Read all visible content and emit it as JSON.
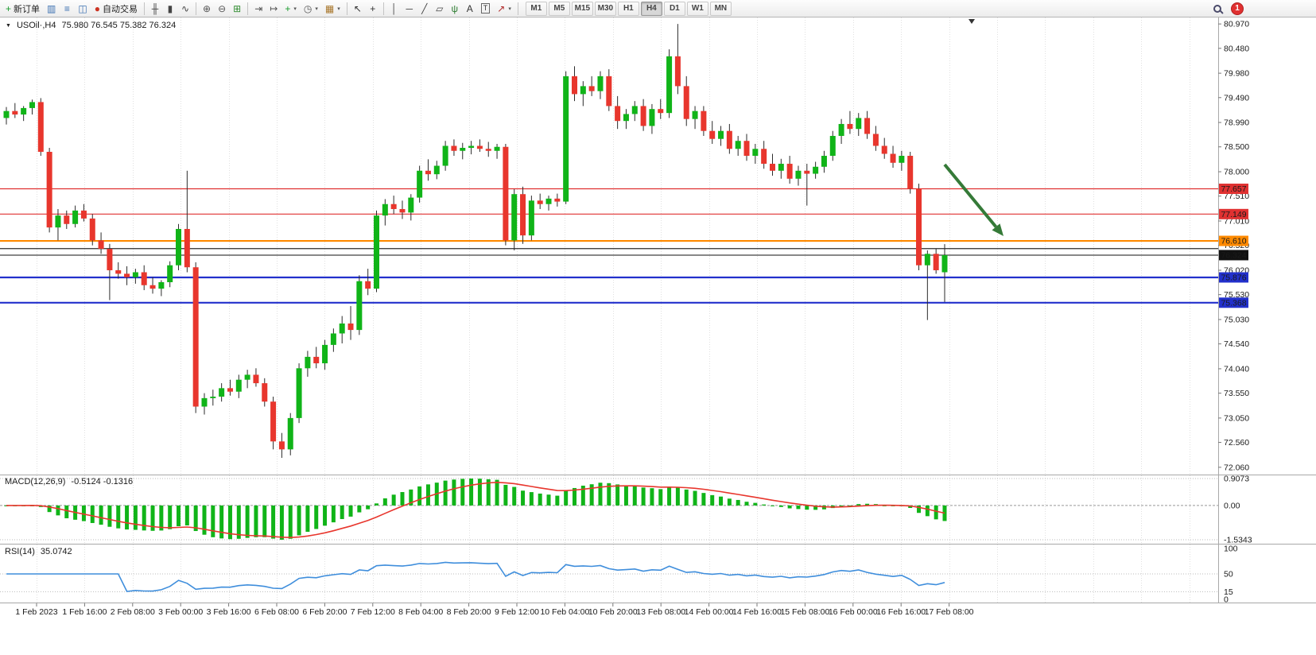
{
  "toolbar": {
    "badge_count": "1",
    "active_timeframe": "H4",
    "timeframes": [
      "M1",
      "M5",
      "M15",
      "M30",
      "H1",
      "H4",
      "D1",
      "W1",
      "MN"
    ],
    "items": [
      {
        "kind": "labeled",
        "name": "new-order-button",
        "icon": "new-order-icon",
        "glyph": "+",
        "color": "#1a9c2e",
        "label": "新订单"
      },
      {
        "kind": "icon",
        "name": "charts-button",
        "icon": "bar-columns-icon",
        "glyph": "▥",
        "color": "#3a6fb0"
      },
      {
        "kind": "icon",
        "name": "market-watch-button",
        "icon": "market-watch-icon",
        "glyph": "≡",
        "color": "#3a6fb0"
      },
      {
        "kind": "icon",
        "name": "data-window-button",
        "icon": "data-window-icon",
        "glyph": "◫",
        "color": "#3a6fb0"
      },
      {
        "kind": "labeled",
        "name": "autotrading-button",
        "icon": "autotrading-icon",
        "glyph": "●",
        "color": "#cc3322",
        "label": "自动交易"
      },
      {
        "kind": "sep"
      },
      {
        "kind": "icon",
        "name": "ohlc-bars-button",
        "icon": "ohlc-bars-icon",
        "glyph": "╫",
        "color": "#444444"
      },
      {
        "kind": "icon",
        "name": "candlestick-button",
        "icon": "candlestick-icon",
        "glyph": "▮",
        "color": "#444444"
      },
      {
        "kind": "icon",
        "name": "line-chart-button",
        "icon": "line-chart-icon",
        "glyph": "∿",
        "color": "#444444"
      },
      {
        "kind": "sep"
      },
      {
        "kind": "icon",
        "name": "zoom-in-button",
        "icon": "zoom-in-icon",
        "glyph": "⊕",
        "color": "#555555"
      },
      {
        "kind": "icon",
        "name": "zoom-out-button",
        "icon": "zoom-out-icon",
        "glyph": "⊖",
        "color": "#555555"
      },
      {
        "kind": "icon",
        "name": "tile-windows-button",
        "icon": "tile-windows-icon",
        "glyph": "⊞",
        "color": "#2e8b2e"
      },
      {
        "kind": "sep"
      },
      {
        "kind": "icon",
        "name": "auto-scroll-button",
        "icon": "auto-scroll-icon",
        "glyph": "⇥",
        "color": "#555555"
      },
      {
        "kind": "icon",
        "name": "chart-shift-button",
        "icon": "chart-shift-icon",
        "glyph": "↦",
        "color": "#555555"
      },
      {
        "kind": "icon",
        "name": "indicators-button",
        "icon": "indicators-icon",
        "glyph": "+",
        "color": "#1a9c2e",
        "caret": true
      },
      {
        "kind": "icon",
        "name": "periods-button",
        "icon": "clock-icon",
        "glyph": "◷",
        "color": "#555555",
        "caret": true
      },
      {
        "kind": "icon",
        "name": "templates-button",
        "icon": "templates-icon",
        "glyph": "▦",
        "color": "#a8762a",
        "caret": true
      },
      {
        "kind": "sep"
      },
      {
        "kind": "icon",
        "name": "cursor-button",
        "icon": "cursor-icon",
        "glyph": "↖",
        "color": "#333333"
      },
      {
        "kind": "icon",
        "name": "crosshair-button",
        "icon": "crosshair-icon",
        "glyph": "+",
        "color": "#333333"
      },
      {
        "kind": "sep"
      },
      {
        "kind": "icon",
        "name": "vertical-line-button",
        "icon": "vertical-line-icon",
        "glyph": "│",
        "color": "#444444"
      },
      {
        "kind": "icon",
        "name": "horizontal-line-button",
        "icon": "horizontal-line-icon",
        "glyph": "─",
        "color": "#444444"
      },
      {
        "kind": "icon",
        "name": "trendline-button",
        "icon": "trendline-icon",
        "glyph": "╱",
        "color": "#444444"
      },
      {
        "kind": "icon",
        "name": "channel-button",
        "icon": "channel-icon",
        "glyph": "▱",
        "color": "#444444"
      },
      {
        "kind": "icon",
        "name": "fibonacci-button",
        "icon": "fibonacci-icon",
        "glyph": "ψ",
        "color": "#2e7d32"
      },
      {
        "kind": "icon",
        "name": "text-button",
        "icon": "text-icon",
        "glyph": "A",
        "color": "#333333"
      },
      {
        "kind": "icon",
        "name": "text-label-button",
        "icon": "text-label-icon",
        "glyph": "T",
        "color": "#333333",
        "boxed": true
      },
      {
        "kind": "icon",
        "name": "arrows-button",
        "icon": "arrow-object-icon",
        "glyph": "↗",
        "color": "#b02a2a",
        "caret": true
      },
      {
        "kind": "sep"
      }
    ]
  },
  "chart": {
    "symbol_label": "USOil·,H4",
    "ohlc_text": "75.980 76.545 75.382 76.324",
    "dropdown_glyph": "▼",
    "price_axis_labels": [
      "80.970",
      "80.480",
      "79.980",
      "79.490",
      "78.990",
      "78.500",
      "78.000",
      "77.510",
      "77.010",
      "76.520",
      "76.020",
      "75.530",
      "75.030",
      "74.540",
      "74.040",
      "73.550",
      "73.050",
      "72.560",
      "72.060"
    ],
    "time_axis_labels": [
      "1 Feb 2023",
      "1 Feb 16:00",
      "2 Feb 08:00",
      "3 Feb 00:00",
      "3 Feb 16:00",
      "6 Feb 08:00",
      "6 Feb 20:00",
      "7 Feb 12:00",
      "8 Feb 04:00",
      "8 Feb 20:00",
      "9 Feb 12:00",
      "10 Feb 04:00",
      "10 Feb 20:00",
      "13 Feb 08:00",
      "14 Feb 00:00",
      "14 Feb 16:00",
      "15 Feb 08:00",
      "16 Feb 00:00",
      "16 Feb 16:00",
      "17 Feb 08:00"
    ],
    "price_lines": [
      {
        "name": "resistance-line-upper",
        "price": 77.657,
        "label": "77.657",
        "color": "#e03131",
        "width": 1.2
      },
      {
        "name": "resistance-line-lower",
        "price": 77.149,
        "label": "77.149",
        "color": "#e03131",
        "width": 1.2
      },
      {
        "name": "pivot-line-orange",
        "price": 76.61,
        "label": "76.610",
        "color": "#ff8a00",
        "width": 2.2
      },
      {
        "name": "black-horizontal-line",
        "price": 76.455,
        "label": "",
        "color": "#2b2b2b",
        "width": 1.2
      },
      {
        "name": "bid-price-line",
        "price": 76.324,
        "label": "76.324",
        "color": "#111111",
        "width": 1
      },
      {
        "name": "support-line-upper",
        "price": 75.876,
        "label": "75.876",
        "color": "#2230cc",
        "width": 2.2
      },
      {
        "name": "support-line-lower",
        "price": 75.368,
        "label": "75.368",
        "color": "#2230cc",
        "width": 2.2
      }
    ],
    "arrow": {
      "color": "#357a38"
    },
    "colors": {
      "bull": "#10b418",
      "bear": "#e8362d",
      "wick": "#2b2b2b",
      "macd_bar": "#10b418",
      "macd_signal": "#e8362d",
      "rsi_line": "#3f8edc",
      "grid": "#e0e0e0",
      "axis_border": "#a8a8a8"
    }
  },
  "indicators": {
    "macd": {
      "title": "MACD(12,26,9)",
      "values": "-0.5124 -0.1316",
      "axis_labels": [
        "0.9073",
        "0.00",
        "-1.5343"
      ]
    },
    "rsi": {
      "title": "RSI(14)",
      "value": "35.0742",
      "axis_labels": [
        "100",
        "50",
        "15",
        "0"
      ],
      "levels": [
        50,
        15
      ]
    }
  },
  "chart_data": {
    "type": "candlestick",
    "symbol": "USOil",
    "timeframe": "H4",
    "current_bar": {
      "open": "75.980",
      "high": "76.545",
      "low": "75.382",
      "close": "76.324"
    },
    "price_range": [
      71.93,
      81.1
    ],
    "candles": [
      [
        79.08,
        79.3,
        78.95,
        79.22
      ],
      [
        79.22,
        79.38,
        79.08,
        79.15
      ],
      [
        79.15,
        79.32,
        79.02,
        79.28
      ],
      [
        79.28,
        79.45,
        79.15,
        79.4
      ],
      [
        79.4,
        79.48,
        78.32,
        78.4
      ],
      [
        78.4,
        78.48,
        76.78,
        76.88
      ],
      [
        76.88,
        77.25,
        76.62,
        77.12
      ],
      [
        77.12,
        77.22,
        76.85,
        76.95
      ],
      [
        76.95,
        77.32,
        76.88,
        77.22
      ],
      [
        77.22,
        77.35,
        77.0,
        77.06
      ],
      [
        77.06,
        77.15,
        76.52,
        76.62
      ],
      [
        76.62,
        76.78,
        76.35,
        76.45
      ],
      [
        76.45,
        76.55,
        75.42,
        76.02
      ],
      [
        76.02,
        76.18,
        75.85,
        75.95
      ],
      [
        75.95,
        76.1,
        75.72,
        75.88
      ],
      [
        75.88,
        76.05,
        75.75,
        75.98
      ],
      [
        75.98,
        76.12,
        75.62,
        75.72
      ],
      [
        75.72,
        75.88,
        75.55,
        75.65
      ],
      [
        75.65,
        75.82,
        75.5,
        75.78
      ],
      [
        75.78,
        76.2,
        75.68,
        76.12
      ],
      [
        76.12,
        76.95,
        76.02,
        76.85
      ],
      [
        76.85,
        78.02,
        75.98,
        76.08
      ],
      [
        76.08,
        76.18,
        73.15,
        73.28
      ],
      [
        73.28,
        73.55,
        73.12,
        73.45
      ],
      [
        73.45,
        73.62,
        73.3,
        73.48
      ],
      [
        73.48,
        73.75,
        73.38,
        73.65
      ],
      [
        73.65,
        73.82,
        73.5,
        73.58
      ],
      [
        73.58,
        73.92,
        73.45,
        73.82
      ],
      [
        73.82,
        74.02,
        73.65,
        73.92
      ],
      [
        73.92,
        74.05,
        73.68,
        73.75
      ],
      [
        73.75,
        73.85,
        73.28,
        73.38
      ],
      [
        73.38,
        73.48,
        72.42,
        72.58
      ],
      [
        72.58,
        72.75,
        72.25,
        72.42
      ],
      [
        72.42,
        73.15,
        72.3,
        73.05
      ],
      [
        73.05,
        74.15,
        72.95,
        74.05
      ],
      [
        74.05,
        74.4,
        73.88,
        74.28
      ],
      [
        74.28,
        74.48,
        74.05,
        74.15
      ],
      [
        74.15,
        74.62,
        74.02,
        74.52
      ],
      [
        74.52,
        74.85,
        74.38,
        74.75
      ],
      [
        74.75,
        75.1,
        74.55,
        74.95
      ],
      [
        74.95,
        75.3,
        74.62,
        74.82
      ],
      [
        74.82,
        75.92,
        74.72,
        75.8
      ],
      [
        75.8,
        76.05,
        75.52,
        75.65
      ],
      [
        75.65,
        77.22,
        75.58,
        77.12
      ],
      [
        77.12,
        77.45,
        76.92,
        77.35
      ],
      [
        77.35,
        77.52,
        77.15,
        77.25
      ],
      [
        77.25,
        77.42,
        77.05,
        77.18
      ],
      [
        77.18,
        77.55,
        77.02,
        77.48
      ],
      [
        77.48,
        78.12,
        77.38,
        78.02
      ],
      [
        78.02,
        78.25,
        77.82,
        77.95
      ],
      [
        77.95,
        78.22,
        77.85,
        78.12
      ],
      [
        78.12,
        78.62,
        78.02,
        78.52
      ],
      [
        78.52,
        78.65,
        78.32,
        78.42
      ],
      [
        78.42,
        78.58,
        78.25,
        78.48
      ],
      [
        78.48,
        78.62,
        78.35,
        78.52
      ],
      [
        78.52,
        78.65,
        78.4,
        78.46
      ],
      [
        78.46,
        78.6,
        78.3,
        78.42
      ],
      [
        78.42,
        78.56,
        78.26,
        78.5
      ],
      [
        78.5,
        78.56,
        76.52,
        76.62
      ],
      [
        76.62,
        77.65,
        76.42,
        77.55
      ],
      [
        77.55,
        77.7,
        76.55,
        76.72
      ],
      [
        76.72,
        77.52,
        76.62,
        77.42
      ],
      [
        77.42,
        77.56,
        77.25,
        77.35
      ],
      [
        77.35,
        77.52,
        77.22,
        77.46
      ],
      [
        77.46,
        77.56,
        77.3,
        77.4
      ],
      [
        77.4,
        80.02,
        77.35,
        79.92
      ],
      [
        79.92,
        80.12,
        79.42,
        79.56
      ],
      [
        79.56,
        79.82,
        79.32,
        79.72
      ],
      [
        79.72,
        79.92,
        79.52,
        79.62
      ],
      [
        79.62,
        80.02,
        79.46,
        79.92
      ],
      [
        79.92,
        80.06,
        79.22,
        79.32
      ],
      [
        79.32,
        79.52,
        78.86,
        79.02
      ],
      [
        79.02,
        79.26,
        78.86,
        79.16
      ],
      [
        79.16,
        79.42,
        79.02,
        79.32
      ],
      [
        79.32,
        79.46,
        78.82,
        78.92
      ],
      [
        78.92,
        79.36,
        78.76,
        79.26
      ],
      [
        79.26,
        79.46,
        79.06,
        79.18
      ],
      [
        79.18,
        80.46,
        79.08,
        80.32
      ],
      [
        80.32,
        80.97,
        79.56,
        79.72
      ],
      [
        79.72,
        79.92,
        78.92,
        79.06
      ],
      [
        79.06,
        79.32,
        78.86,
        79.22
      ],
      [
        79.22,
        79.32,
        78.72,
        78.82
      ],
      [
        78.82,
        79.02,
        78.56,
        78.66
      ],
      [
        78.66,
        78.92,
        78.52,
        78.82
      ],
      [
        78.82,
        78.96,
        78.36,
        78.46
      ],
      [
        78.46,
        78.72,
        78.32,
        78.62
      ],
      [
        78.62,
        78.76,
        78.22,
        78.32
      ],
      [
        78.32,
        78.56,
        78.16,
        78.46
      ],
      [
        78.46,
        78.62,
        78.06,
        78.16
      ],
      [
        78.16,
        78.36,
        77.92,
        78.02
      ],
      [
        78.02,
        78.26,
        77.86,
        78.16
      ],
      [
        78.16,
        78.32,
        77.76,
        77.86
      ],
      [
        77.86,
        78.12,
        77.72,
        78.02
      ],
      [
        78.02,
        78.16,
        77.32,
        77.96
      ],
      [
        77.96,
        78.2,
        77.86,
        78.1
      ],
      [
        78.1,
        78.42,
        77.98,
        78.32
      ],
      [
        78.32,
        78.82,
        78.22,
        78.72
      ],
      [
        78.72,
        79.06,
        78.56,
        78.96
      ],
      [
        78.96,
        79.22,
        78.76,
        78.86
      ],
      [
        78.86,
        79.18,
        78.72,
        79.08
      ],
      [
        79.08,
        79.22,
        78.66,
        78.76
      ],
      [
        78.76,
        78.92,
        78.42,
        78.52
      ],
      [
        78.52,
        78.68,
        78.26,
        78.36
      ],
      [
        78.36,
        78.52,
        78.08,
        78.18
      ],
      [
        78.18,
        78.42,
        78.02,
        78.32
      ],
      [
        78.32,
        78.4,
        77.56,
        77.66
      ],
      [
        77.66,
        77.76,
        76.02,
        76.12
      ],
      [
        76.12,
        76.42,
        75.02,
        76.35
      ],
      [
        76.35,
        76.45,
        75.95,
        76.02
      ],
      [
        75.98,
        76.545,
        75.382,
        76.324
      ]
    ]
  }
}
